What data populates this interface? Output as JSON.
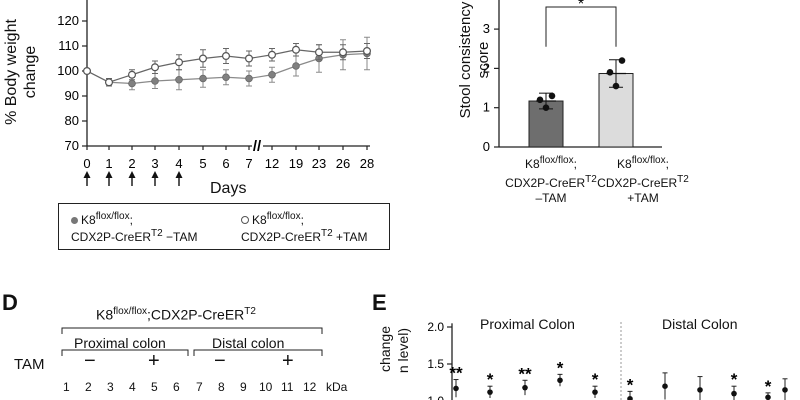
{
  "chart_data": [
    {
      "type": "line",
      "title": "",
      "xlabel": "Days",
      "ylabel": "% Body weight change",
      "ylim": [
        70,
        125
      ],
      "yticks": [
        "70",
        "80",
        "90",
        "100",
        "110",
        "120"
      ],
      "x_labels": [
        "0",
        "1",
        "2",
        "3",
        "4",
        "5",
        "6",
        "7",
        "12",
        "19",
        "23",
        "26",
        "28"
      ],
      "arrows_at": [
        "0",
        "1",
        "2",
        "3",
        "4"
      ],
      "axis_break_symbol": "//",
      "series": [
        {
          "name": "K8flox/flox; CDX2P-CreERT2 −TAM",
          "color": "#808080",
          "values": [
            100,
            95.5,
            95,
            96,
            96.5,
            97,
            97.5,
            97,
            98.5,
            102,
            105,
            106.5,
            107
          ],
          "errors": [
            0,
            1.5,
            2.5,
            3,
            4,
            3.5,
            3,
            3,
            3,
            4,
            5.5,
            6,
            6.5
          ]
        },
        {
          "name": "K8flox/flox; CDX2P-CreERT2 +TAM",
          "color": "#ffffff",
          "values": [
            100,
            95.5,
            98.5,
            101.5,
            103.5,
            105,
            106,
            105,
            106.5,
            108.5,
            107.5,
            107.5,
            108
          ],
          "errors": [
            0,
            1.5,
            2,
            2.5,
            3,
            3.5,
            3,
            3,
            2.5,
            2.5,
            3,
            3,
            3
          ]
        }
      ],
      "legend": [
        {
          "base": "K8",
          "sup1": "flox/flox",
          "mid": ";",
          "line2": "CDX2P-CreER",
          "sup2": "T2",
          "tail": " −TAM"
        },
        {
          "base": "K8",
          "sup1": "flox/flox",
          "mid": ";",
          "line2": "CDX2P-CreER",
          "sup2": "T2",
          "tail": " +TAM"
        }
      ]
    },
    {
      "type": "bar",
      "ylabel": "Stool consistency score",
      "ylim": [
        0,
        3.5
      ],
      "yticks": [
        "0",
        "1",
        "2",
        "3"
      ],
      "categories": [
        "K8flox/flox; CDX2P-CreERT2 −TAM",
        "K8flox/flox; CDX2P-CreERT2 +TAM"
      ],
      "values": [
        1.17,
        1.87
      ],
      "errors": [
        0.2,
        0.35
      ],
      "points": [
        [
          1.0,
          1.2,
          1.3
        ],
        [
          1.55,
          1.9,
          2.2
        ]
      ],
      "colors": [
        "#6e6e6e",
        "#dcdcdc"
      ],
      "significance": "*",
      "cat_labels": [
        {
          "base": "K8",
          "sup1": "flox/flox",
          "mid": ";",
          "line2": "CDX2P-CreER",
          "sup2": "T2",
          "line3": "–TAM"
        },
        {
          "base": "K8",
          "sup1": "flox/flox",
          "mid": ";",
          "line2": "CDX2P-CreER",
          "sup2": "T2",
          "line3": "+TAM"
        }
      ]
    },
    {
      "type": "scatter",
      "panel_label": "E",
      "ylabel_visible": [
        "change",
        "n level)"
      ],
      "yticks": [
        "1.0",
        "1.5",
        "2.0"
      ],
      "ylim": [
        1.0,
        2.0
      ],
      "region_labels": [
        "Proximal Colon",
        "Distal Colon"
      ],
      "points": [
        {
          "value": 1.17,
          "error": 0.12,
          "star": "**"
        },
        {
          "value": 1.12,
          "error": 0.08,
          "star": "*"
        },
        {
          "value": 1.18,
          "error": 0.1,
          "star": "**"
        },
        {
          "value": 1.28,
          "error": 0.08,
          "star": "*"
        },
        {
          "value": 1.12,
          "error": 0.08,
          "star": "*"
        },
        {
          "value": 1.03,
          "error": 0.1,
          "star": "*"
        },
        {
          "value": 1.2,
          "error": 0.18,
          "star": ""
        },
        {
          "value": 1.15,
          "error": 0.18,
          "star": ""
        },
        {
          "value": 1.1,
          "error": 0.1,
          "star": "*"
        },
        {
          "value": 1.05,
          "error": 0.06,
          "star": "*"
        },
        {
          "value": 1.15,
          "error": 0.15,
          "star": ""
        }
      ]
    }
  ],
  "panel_d": {
    "label": "D",
    "title_base": "K8",
    "title_sup1": "flox/flox",
    "title_mid": ";CDX2P-CreER",
    "title_sup2": "T2",
    "proximal": "Proximal colon",
    "distal": "Distal colon",
    "tam_label": "TAM",
    "signs": [
      "−",
      "+",
      "−",
      "+"
    ],
    "lanes": [
      "1",
      "2",
      "3",
      "4",
      "5",
      "6",
      "7",
      "8",
      "9",
      "10",
      "11",
      "12"
    ],
    "kda": "kDa"
  }
}
